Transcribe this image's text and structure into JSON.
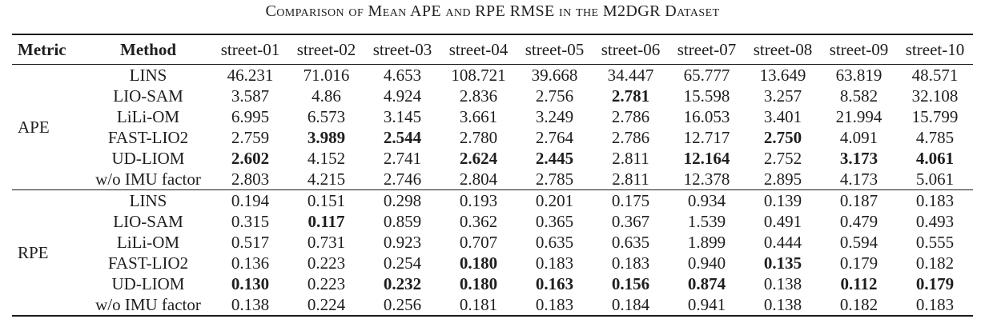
{
  "title": "Comparison of Mean APE and RPE RMSE in the M2DGR Dataset",
  "colors": {
    "text": "#1e1e1e",
    "rule": "#1a1a1a",
    "background": "#ffffff"
  },
  "table": {
    "headers": [
      "Metric",
      "Method",
      "street-01",
      "street-02",
      "street-03",
      "street-04",
      "street-05",
      "street-06",
      "street-07",
      "street-08",
      "street-09",
      "street-10"
    ],
    "sections": [
      {
        "metric": "APE",
        "rows": [
          {
            "method": "LINS",
            "values": [
              "46.231",
              "71.016",
              "4.653",
              "108.721",
              "39.668",
              "34.447",
              "65.777",
              "13.649",
              "63.819",
              "48.571"
            ],
            "bold": []
          },
          {
            "method": "LIO-SAM",
            "values": [
              "3.587",
              "4.86",
              "4.924",
              "2.836",
              "2.756",
              "2.781",
              "15.598",
              "3.257",
              "8.582",
              "32.108"
            ],
            "bold": [
              5
            ]
          },
          {
            "method": "LiLi-OM",
            "values": [
              "6.995",
              "6.573",
              "3.145",
              "3.661",
              "3.249",
              "2.786",
              "16.053",
              "3.401",
              "21.994",
              "15.799"
            ],
            "bold": []
          },
          {
            "method": "FAST-LIO2",
            "values": [
              "2.759",
              "3.989",
              "2.544",
              "2.780",
              "2.764",
              "2.786",
              "12.717",
              "2.750",
              "4.091",
              "4.785"
            ],
            "bold": [
              1,
              2,
              7
            ]
          },
          {
            "method": "UD-LIOM",
            "values": [
              "2.602",
              "4.152",
              "2.741",
              "2.624",
              "2.445",
              "2.811",
              "12.164",
              "2.752",
              "3.173",
              "4.061"
            ],
            "bold": [
              0,
              3,
              4,
              6,
              8,
              9
            ]
          },
          {
            "method": "w/o IMU factor",
            "values": [
              "2.803",
              "4.215",
              "2.746",
              "2.804",
              "2.785",
              "2.811",
              "12.378",
              "2.895",
              "4.173",
              "5.061"
            ],
            "bold": []
          }
        ]
      },
      {
        "metric": "RPE",
        "rows": [
          {
            "method": "LINS",
            "values": [
              "0.194",
              "0.151",
              "0.298",
              "0.193",
              "0.201",
              "0.175",
              "0.934",
              "0.139",
              "0.187",
              "0.183"
            ],
            "bold": []
          },
          {
            "method": "LIO-SAM",
            "values": [
              "0.315",
              "0.117",
              "0.859",
              "0.362",
              "0.365",
              "0.367",
              "1.539",
              "0.491",
              "0.479",
              "0.493"
            ],
            "bold": [
              1
            ]
          },
          {
            "method": "LiLi-OM",
            "values": [
              "0.517",
              "0.731",
              "0.923",
              "0.707",
              "0.635",
              "0.635",
              "1.899",
              "0.444",
              "0.594",
              "0.555"
            ],
            "bold": []
          },
          {
            "method": "FAST-LIO2",
            "values": [
              "0.136",
              "0.223",
              "0.254",
              "0.180",
              "0.183",
              "0.183",
              "0.940",
              "0.135",
              "0.179",
              "0.182"
            ],
            "bold": [
              3,
              7
            ]
          },
          {
            "method": "UD-LIOM",
            "values": [
              "0.130",
              "0.223",
              "0.232",
              "0.180",
              "0.163",
              "0.156",
              "0.874",
              "0.138",
              "0.112",
              "0.179"
            ],
            "bold": [
              0,
              2,
              3,
              4,
              5,
              6,
              8,
              9
            ]
          },
          {
            "method": "w/o IMU factor",
            "values": [
              "0.138",
              "0.224",
              "0.256",
              "0.181",
              "0.183",
              "0.184",
              "0.941",
              "0.138",
              "0.182",
              "0.183"
            ],
            "bold": []
          }
        ]
      }
    ]
  }
}
